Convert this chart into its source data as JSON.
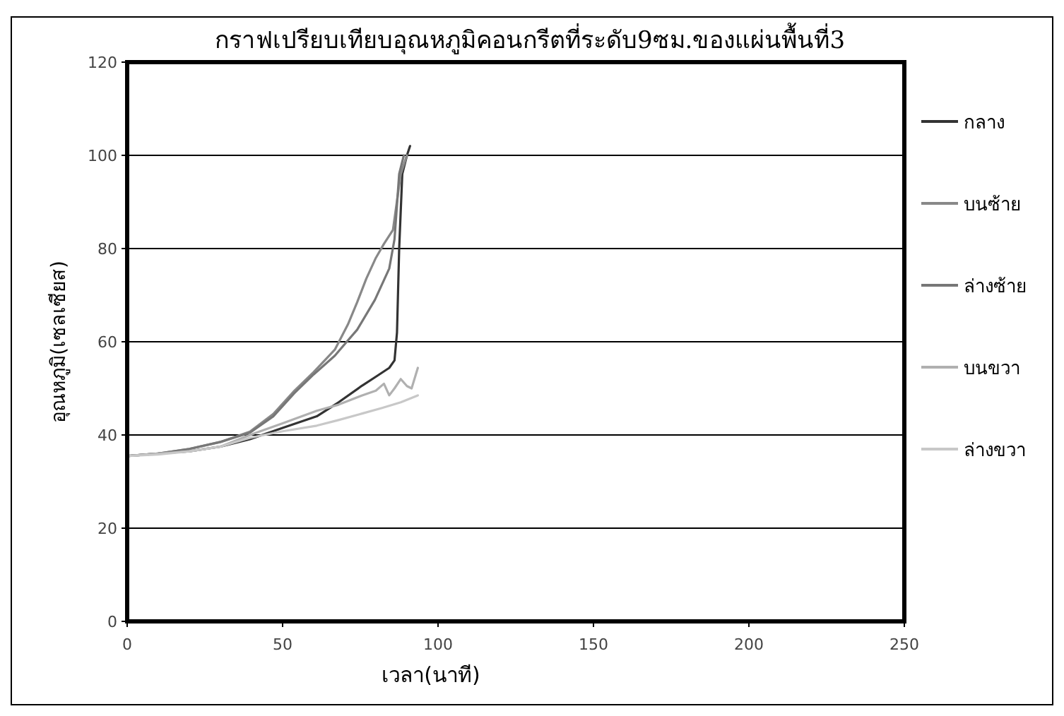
{
  "chart_data": {
    "type": "line",
    "title": "กราฟเปรียบเทียบอุณหภูมิคอนกรีตที่ระดับ9ซม.ของแผ่นพื้นที่3",
    "xlabel": "เวลา(นาที)",
    "ylabel": "อุณหภูมิ(เซลเซียส)",
    "xlim": [
      0,
      250
    ],
    "xticks": [
      0,
      50,
      100,
      150,
      200,
      250
    ],
    "ylim": [
      0,
      120
    ],
    "yticks": [
      0,
      20,
      40,
      60,
      80,
      100,
      120
    ],
    "grid": "y",
    "legend": "right",
    "marker": "none",
    "line_style": "solid",
    "series": [
      {
        "name": "กลาง",
        "color": "#333333",
        "x": [
          0.5,
          10,
          20,
          30,
          39.5,
          50,
          61,
          68,
          75.6,
          80,
          84.3,
          86,
          86.8,
          87.5,
          88.5,
          90,
          91
        ],
        "values": [
          35.5,
          36,
          36.5,
          37.5,
          39.1,
          41.5,
          44,
          47,
          50.6,
          52.5,
          54.4,
          56,
          62,
          80,
          96,
          100,
          102
        ]
      },
      {
        "name": "บนซ้าย",
        "color": "#888888",
        "x": [
          0.5,
          10,
          20,
          30,
          39.5,
          47,
          53.8,
          60,
          66.8,
          71,
          74,
          76.9,
          80,
          82.6,
          85.5,
          88,
          90
        ],
        "values": [
          35.5,
          36,
          37,
          38.5,
          40.7,
          44.5,
          49.5,
          53.5,
          58.3,
          63.7,
          68.5,
          73.5,
          78,
          81,
          84,
          96,
          100
        ]
      },
      {
        "name": "ล่างซ้าย",
        "color": "#777777",
        "x": [
          0.5,
          10,
          20,
          30,
          39.5,
          47,
          53.8,
          60,
          66.8,
          70,
          74,
          79.7,
          84.3,
          86,
          87.5,
          89
        ],
        "values": [
          35.5,
          36,
          37,
          38.5,
          40.5,
          44,
          49,
          53,
          57,
          59.5,
          62.6,
          69,
          75.7,
          82,
          96,
          100
        ]
      },
      {
        "name": "บนขวา",
        "color": "#b0b0b0",
        "x": [
          0.5,
          10,
          20,
          30,
          39.5,
          50,
          61,
          68,
          75.6,
          80,
          82.6,
          84.3,
          86,
          88,
          90,
          91.5,
          93.5
        ],
        "values": [
          35.5,
          36,
          36.5,
          37.5,
          40,
          42.5,
          45.2,
          46.5,
          48.5,
          49.5,
          51,
          48.5,
          50,
          52,
          50.5,
          50,
          54.4
        ]
      },
      {
        "name": "ล่างขวา",
        "color": "#c8c8c8",
        "x": [
          0.5,
          10,
          20,
          30,
          39.5,
          50,
          61,
          68,
          75.6,
          82,
          88,
          93.5
        ],
        "values": [
          35.5,
          35.8,
          36.5,
          37.5,
          39.4,
          40.8,
          42,
          43.2,
          44.6,
          45.8,
          47,
          48.5
        ]
      }
    ]
  }
}
